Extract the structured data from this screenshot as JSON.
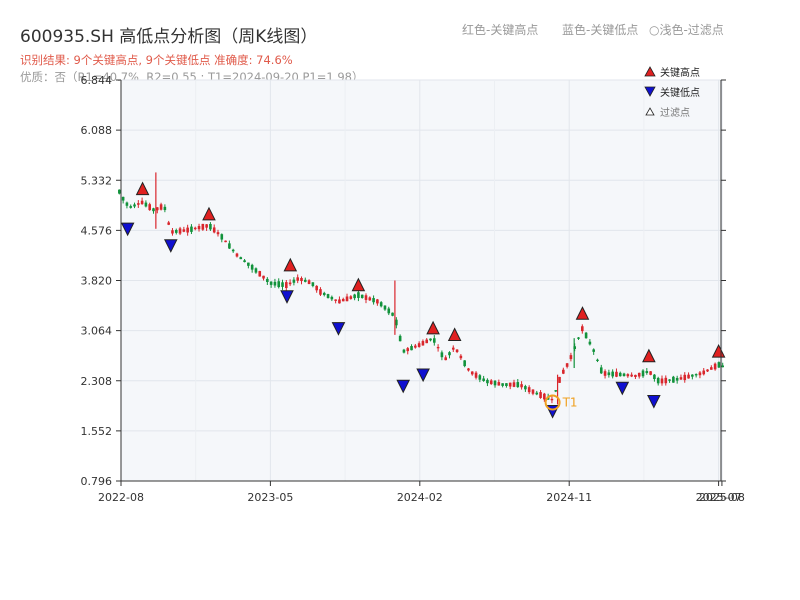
{
  "header": {
    "title": "600935.SH 高低点分析图（周K线图）",
    "legend_red": "红色-关键高点",
    "legend_blue": "蓝色-关键低点",
    "legend_gray": "○浅色-过滤点",
    "result": "识别结果: 9个关键高点, 9个关键低点  准确度: 74.6%",
    "quality": "优质：否（R1=40.7%, R2=0.55 ; T1=2024-09-20 P1=1.98）"
  },
  "chart_data": {
    "type": "candlestick",
    "ylim": [
      0.796,
      6.844
    ],
    "yticks": [
      "0.796",
      "1.552",
      "2.308",
      "3.064",
      "3.820",
      "4.576",
      "5.332",
      "6.088",
      "6.844"
    ],
    "xticks": [
      "2022-08",
      "2023-05",
      "2024-02",
      "2024-11",
      "2025-07",
      "2025-08"
    ],
    "legend": {
      "high": "关键高点",
      "low": "关键低点",
      "filtered": "过滤点"
    },
    "t1": {
      "label": "T1",
      "date": "2024-09-20",
      "price": 1.98
    },
    "colors": {
      "up": "#d9262c",
      "down": "#11923b",
      "high": "#e02020",
      "low": "#1010d0",
      "t1": "#f0a020"
    },
    "highs": [
      {
        "m": 1.3,
        "p": 5.1
      },
      {
        "m": 5.3,
        "p": 4.72
      },
      {
        "m": 10.2,
        "p": 3.95
      },
      {
        "m": 14.3,
        "p": 3.65
      },
      {
        "m": 18.8,
        "p": 3.0
      },
      {
        "m": 20.1,
        "p": 2.9
      },
      {
        "m": 27.8,
        "p": 3.22
      },
      {
        "m": 31.8,
        "p": 2.58
      },
      {
        "m": 36.0,
        "p": 2.65
      }
    ],
    "lows": [
      {
        "m": 0.4,
        "p": 4.7
      },
      {
        "m": 3.0,
        "p": 4.45
      },
      {
        "m": 10.0,
        "p": 3.68
      },
      {
        "m": 13.1,
        "p": 3.2
      },
      {
        "m": 17.0,
        "p": 2.33
      },
      {
        "m": 18.2,
        "p": 2.5
      },
      {
        "m": 30.2,
        "p": 2.3
      },
      {
        "m": 32.1,
        "p": 2.1
      },
      {
        "m": 26.0,
        "p": 1.95
      }
    ],
    "trend": [
      [
        -1.0,
        5.55
      ],
      [
        -0.5,
        5.4
      ],
      [
        0.0,
        5.1
      ],
      [
        0.5,
        4.92
      ],
      [
        1.3,
        5.0
      ],
      [
        2.0,
        4.88
      ],
      [
        2.6,
        4.95
      ],
      [
        3.0,
        4.55
      ],
      [
        4.0,
        4.58
      ],
      [
        5.3,
        4.65
      ],
      [
        6.0,
        4.5
      ],
      [
        7.0,
        4.2
      ],
      [
        8.0,
        4.0
      ],
      [
        9.0,
        3.78
      ],
      [
        10.0,
        3.75
      ],
      [
        10.7,
        3.85
      ],
      [
        11.5,
        3.78
      ],
      [
        12.0,
        3.65
      ],
      [
        13.1,
        3.5
      ],
      [
        14.3,
        3.6
      ],
      [
        15.5,
        3.5
      ],
      [
        16.5,
        3.28
      ],
      [
        17.0,
        2.75
      ],
      [
        18.0,
        2.85
      ],
      [
        18.8,
        2.95
      ],
      [
        19.5,
        2.62
      ],
      [
        20.1,
        2.82
      ],
      [
        21.0,
        2.45
      ],
      [
        22.0,
        2.3
      ],
      [
        23.0,
        2.25
      ],
      [
        24.0,
        2.25
      ],
      [
        25.0,
        2.12
      ],
      [
        26.0,
        2.02
      ],
      [
        26.5,
        2.38
      ],
      [
        27.0,
        2.6
      ],
      [
        27.8,
        3.1
      ],
      [
        28.5,
        2.75
      ],
      [
        29.0,
        2.42
      ],
      [
        30.2,
        2.4
      ],
      [
        31.0,
        2.38
      ],
      [
        31.8,
        2.45
      ],
      [
        32.4,
        2.3
      ],
      [
        33.5,
        2.33
      ],
      [
        35.0,
        2.42
      ],
      [
        36.0,
        2.55
      ],
      [
        36.5,
        2.5
      ]
    ]
  }
}
